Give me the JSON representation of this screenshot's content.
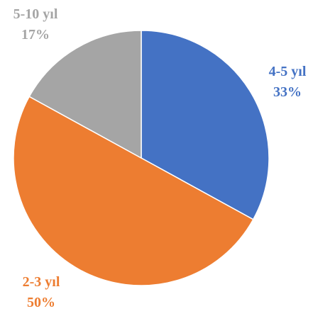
{
  "chart_data": {
    "type": "pie",
    "title": "",
    "start_angle_deg": 0,
    "direction": "clockwise",
    "slices": [
      {
        "label": "4-5 yıl",
        "value": 33,
        "value_label": "33%",
        "color": "#4472C4"
      },
      {
        "label": "2-3 yıl",
        "value": 50,
        "value_label": "50%",
        "color": "#ED7D31"
      },
      {
        "label": "5-10 yıl",
        "value": 17,
        "value_label": "17%",
        "color": "#A5A5A5"
      }
    ]
  }
}
